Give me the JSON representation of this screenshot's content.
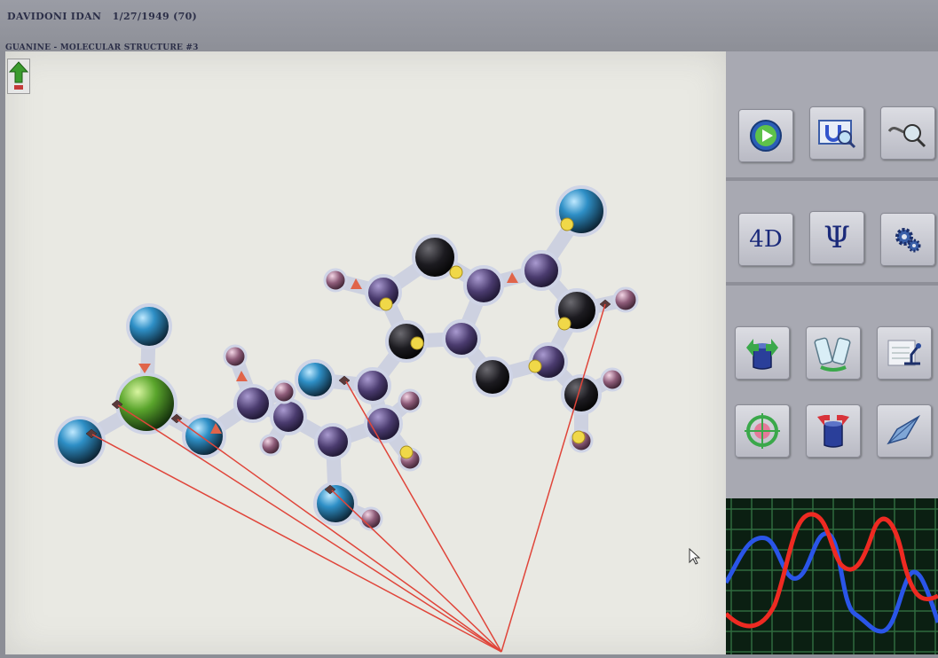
{
  "header": {
    "patient_line": "DAVIDONI IDAN   1/27/1949 (70)",
    "structure_title": "GUANINE - MOLECULAR STRUCTURE #3"
  },
  "toolbar": {
    "dimension_label": "4D",
    "psi_label": "Ψ"
  },
  "colors": {
    "canvas": "#e9e9e3",
    "panel": "#a8a9b2",
    "annotation_lines": "#e0453a",
    "scope_red": "#ee2a22",
    "scope_blue": "#2a55e8"
  },
  "icons": [
    "up-arrow-icon",
    "play-icon",
    "magnet-search-icon",
    "sample-search-icon",
    "gear-icon",
    "cylinder-up-icon",
    "vials-icon",
    "microscope-icon",
    "target-icon",
    "cylinder-down-icon",
    "pen-icon",
    "cursor-icon"
  ]
}
